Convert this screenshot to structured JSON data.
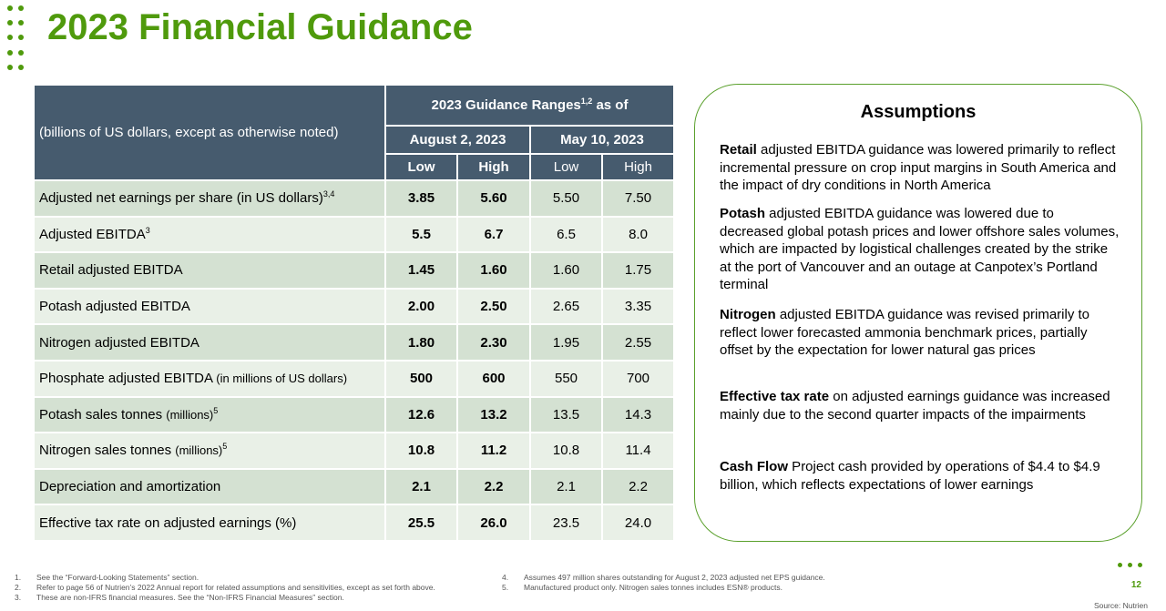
{
  "title": "2023 Financial Guidance",
  "colors": {
    "brand_green": "#4f9a0c",
    "header": "#465b6e",
    "row_dark": "#d4e1d2",
    "row_light": "#e9f0e7"
  },
  "table": {
    "unit_note": "(billions of US dollars, except as otherwise noted)",
    "group_header": "2023 Guidance Ranges",
    "group_sup": "1,2",
    "group_suffix": " as of",
    "dates": [
      "August 2, 2023",
      "May 10, 2023"
    ],
    "subheaders": [
      "Low",
      "High",
      "Low",
      "High"
    ],
    "rows": [
      {
        "label": "Adjusted net earnings per share (in US dollars)",
        "small": "",
        "sup": "3,4",
        "values": [
          "3.85",
          "5.60",
          "5.50",
          "7.50"
        ]
      },
      {
        "label": "Adjusted EBITDA",
        "small": "",
        "sup": "3",
        "values": [
          "5.5",
          "6.7",
          "6.5",
          "8.0"
        ]
      },
      {
        "label": "Retail adjusted EBITDA",
        "small": "",
        "sup": "",
        "values": [
          "1.45",
          "1.60",
          "1.60",
          "1.75"
        ]
      },
      {
        "label": "Potash adjusted EBITDA",
        "small": "",
        "sup": "",
        "values": [
          "2.00",
          "2.50",
          "2.65",
          "3.35"
        ]
      },
      {
        "label": "Nitrogen adjusted EBITDA",
        "small": "",
        "sup": "",
        "values": [
          "1.80",
          "2.30",
          "1.95",
          "2.55"
        ]
      },
      {
        "label": "Phosphate adjusted EBITDA ",
        "small": "(in millions of US dollars)",
        "sup": "",
        "values": [
          "500",
          "600",
          "550",
          "700"
        ]
      },
      {
        "label": "Potash sales tonnes ",
        "small": "(millions)",
        "sup": "5",
        "values": [
          "12.6",
          "13.2",
          "13.5",
          "14.3"
        ]
      },
      {
        "label": "Nitrogen sales tonnes ",
        "small": "(millions)",
        "sup": "5",
        "values": [
          "10.8",
          "11.2",
          "10.8",
          "11.4"
        ]
      },
      {
        "label": "Depreciation and amortization",
        "small": "",
        "sup": "",
        "values": [
          "2.1",
          "2.2",
          "2.1",
          "2.2"
        ]
      },
      {
        "label": "Effective tax rate on adjusted earnings (%)",
        "small": "",
        "sup": "",
        "values": [
          "25.5",
          "26.0",
          "23.5",
          "24.0"
        ]
      }
    ]
  },
  "assumptions": {
    "title": "Assumptions",
    "items": [
      {
        "bold": "Retail",
        "text": " adjusted EBITDA guidance was lowered primarily to reflect incremental pressure on crop input margins in South America and the impact of dry conditions in North America"
      },
      {
        "bold": "Potash",
        "text": " adjusted EBITDA guidance was lowered due to decreased global potash prices and lower offshore sales volumes, which are impacted by logistical challenges created by the strike at the port of Vancouver and an outage at Canpotex’s Portland terminal"
      },
      {
        "bold": "Nitrogen",
        "text": " adjusted EBITDA guidance was revised primarily to reflect lower forecasted ammonia benchmark prices, partially offset by the expectation for lower natural gas prices"
      },
      {
        "bold": "Effective tax rate",
        "text": " on adjusted earnings guidance was increased mainly due to the second quarter impacts of the impairments"
      },
      {
        "bold": "Cash Flow",
        "text": " Project cash provided by operations of $4.4 to $4.9 billion, which reflects expectations of lower earnings"
      }
    ]
  },
  "footnotes": [
    {
      "num": "1.",
      "text": "See the “Forward-Looking Statements” section."
    },
    {
      "num": "2.",
      "text": "Refer to page 56 of Nutrien’s 2022 Annual report for related assumptions and sensitivities, except as set forth above."
    },
    {
      "num": "3.",
      "text": "These are non-IFRS financial measures. See the “Non-IFRS Financial Measures” section."
    },
    {
      "num": "4.",
      "text": "Assumes 497 million shares outstanding for August 2, 2023 adjusted net EPS guidance."
    },
    {
      "num": "5.",
      "text": "Manufactured product only. Nitrogen sales tonnes includes ESN® products."
    }
  ],
  "page_number": "12",
  "source": "Source: Nutrien"
}
